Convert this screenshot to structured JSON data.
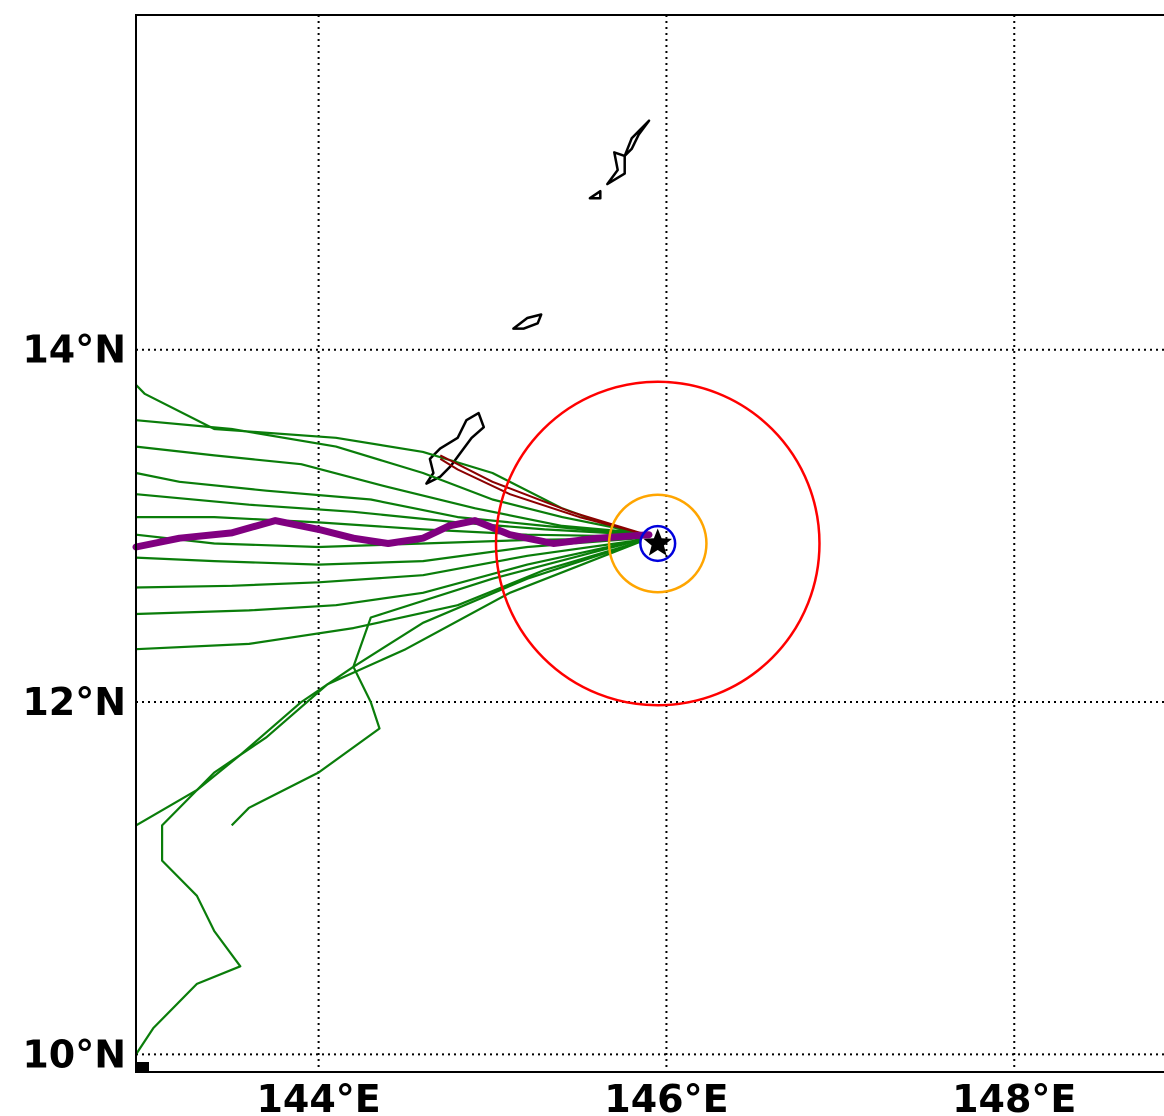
{
  "chart_data": {
    "type": "map",
    "projection": "cylindrical",
    "title": "",
    "xlabel": "",
    "ylabel": "",
    "xlim": [
      142.95,
      148.93
    ],
    "ylim": [
      9.9,
      15.9
    ],
    "grid": true,
    "x_ticks": [
      {
        "value": 144,
        "label": "144°E"
      },
      {
        "value": 146,
        "label": "146°E"
      },
      {
        "value": 148,
        "label": "148°E"
      }
    ],
    "y_ticks": [
      {
        "value": 14,
        "label": "14°N"
      },
      {
        "value": 12,
        "label": "12°N"
      },
      {
        "value": 10,
        "label": "10°N"
      }
    ],
    "storm_center": {
      "lon": 145.95,
      "lat": 12.9,
      "marker": "star"
    },
    "circles": [
      {
        "name": "blue",
        "center": [
          145.95,
          12.9
        ],
        "radius_deg": 0.1,
        "color": "#0000dd"
      },
      {
        "name": "orange",
        "center": [
          145.95,
          12.9
        ],
        "radius_deg": 0.28,
        "color": "#ffa500"
      },
      {
        "name": "red",
        "center": [
          145.95,
          12.9
        ],
        "radius_deg": 0.93,
        "color": "#ff0000"
      }
    ],
    "series": [
      {
        "role": "mean-track",
        "color": "#800080",
        "points": [
          [
            142.95,
            12.88
          ],
          [
            143.2,
            12.93
          ],
          [
            143.5,
            12.96
          ],
          [
            143.75,
            13.03
          ],
          [
            144.0,
            12.98
          ],
          [
            144.2,
            12.93
          ],
          [
            144.4,
            12.9
          ],
          [
            144.6,
            12.93
          ],
          [
            144.75,
            13.0
          ],
          [
            144.9,
            13.03
          ],
          [
            145.1,
            12.95
          ],
          [
            145.35,
            12.9
          ],
          [
            145.6,
            12.93
          ],
          [
            145.9,
            12.95
          ]
        ]
      }
    ],
    "ensemble_tracks": [
      {
        "color": "#0a7d0a",
        "points": [
          [
            145.85,
            12.96
          ],
          [
            145.4,
            13.05
          ],
          [
            145.0,
            13.15
          ],
          [
            144.6,
            13.3
          ],
          [
            144.1,
            13.45
          ],
          [
            143.5,
            13.55
          ],
          [
            142.95,
            13.6
          ]
        ]
      },
      {
        "color": "#0a7d0a",
        "points": [
          [
            145.85,
            12.96
          ],
          [
            145.4,
            13.0
          ],
          [
            144.9,
            13.1
          ],
          [
            144.4,
            13.22
          ],
          [
            143.9,
            13.35
          ],
          [
            143.4,
            13.4
          ],
          [
            142.95,
            13.45
          ]
        ]
      },
      {
        "color": "#0a7d0a",
        "points": [
          [
            145.85,
            12.95
          ],
          [
            145.3,
            13.0
          ],
          [
            144.8,
            13.05
          ],
          [
            144.3,
            13.15
          ],
          [
            143.7,
            13.2
          ],
          [
            143.2,
            13.25
          ],
          [
            142.95,
            13.3
          ]
        ]
      },
      {
        "color": "#0a7d0a",
        "points": [
          [
            145.85,
            12.95
          ],
          [
            145.3,
            12.98
          ],
          [
            144.8,
            13.02
          ],
          [
            144.2,
            13.08
          ],
          [
            143.6,
            13.12
          ],
          [
            142.95,
            13.18
          ]
        ]
      },
      {
        "color": "#0a7d0a",
        "points": [
          [
            145.85,
            12.94
          ],
          [
            145.2,
            12.95
          ],
          [
            144.6,
            12.98
          ],
          [
            144.0,
            13.02
          ],
          [
            143.4,
            13.05
          ],
          [
            142.95,
            13.05
          ]
        ]
      },
      {
        "color": "#0a7d0a",
        "points": [
          [
            145.85,
            12.93
          ],
          [
            145.2,
            12.92
          ],
          [
            144.6,
            12.9
          ],
          [
            144.0,
            12.88
          ],
          [
            143.4,
            12.9
          ],
          [
            142.95,
            12.95
          ]
        ]
      },
      {
        "color": "#0a7d0a",
        "points": [
          [
            145.85,
            12.93
          ],
          [
            145.2,
            12.88
          ],
          [
            144.6,
            12.8
          ],
          [
            144.0,
            12.78
          ],
          [
            143.4,
            12.8
          ],
          [
            142.95,
            12.82
          ]
        ]
      },
      {
        "color": "#0a7d0a",
        "points": [
          [
            145.85,
            12.92
          ],
          [
            145.2,
            12.83
          ],
          [
            144.6,
            12.72
          ],
          [
            144.0,
            12.68
          ],
          [
            143.5,
            12.66
          ],
          [
            142.95,
            12.65
          ]
        ]
      },
      {
        "color": "#0a7d0a",
        "points": [
          [
            145.85,
            12.92
          ],
          [
            145.2,
            12.78
          ],
          [
            144.6,
            12.62
          ],
          [
            144.1,
            12.55
          ],
          [
            143.6,
            12.52
          ],
          [
            142.95,
            12.5
          ]
        ]
      },
      {
        "color": "#0a7d0a",
        "points": [
          [
            145.85,
            12.91
          ],
          [
            145.3,
            12.75
          ],
          [
            144.8,
            12.55
          ],
          [
            144.2,
            12.42
          ],
          [
            143.6,
            12.33
          ],
          [
            142.95,
            12.3
          ]
        ]
      },
      {
        "color": "#0a7d0a",
        "points": [
          [
            145.85,
            12.91
          ],
          [
            145.2,
            12.7
          ],
          [
            144.6,
            12.45
          ],
          [
            144.2,
            12.2
          ],
          [
            143.9,
            12.0
          ],
          [
            143.55,
            11.7
          ],
          [
            143.3,
            11.5
          ],
          [
            142.95,
            11.3
          ]
        ]
      },
      {
        "color": "#0a7d0a",
        "points": [
          [
            145.85,
            12.91
          ],
          [
            145.1,
            12.62
          ],
          [
            144.5,
            12.3
          ],
          [
            144.05,
            12.1
          ],
          [
            143.7,
            11.8
          ],
          [
            143.4,
            11.6
          ],
          [
            143.1,
            11.3
          ],
          [
            143.1,
            11.1
          ],
          [
            143.3,
            10.9
          ],
          [
            143.4,
            10.7
          ],
          [
            143.55,
            10.5
          ],
          [
            143.3,
            10.4
          ],
          [
            143.05,
            10.15
          ],
          [
            142.95,
            10.0
          ]
        ]
      },
      {
        "color": "#0a7d0a",
        "points": [
          [
            145.85,
            12.92
          ],
          [
            145.0,
            12.7
          ],
          [
            144.3,
            12.48
          ],
          [
            144.2,
            12.2
          ],
          [
            144.3,
            12.0
          ],
          [
            144.35,
            11.85
          ],
          [
            144.0,
            11.6
          ],
          [
            143.6,
            11.4
          ],
          [
            143.5,
            11.3
          ]
        ]
      },
      {
        "color": "#0a7d0a",
        "points": [
          [
            145.85,
            12.94
          ],
          [
            145.4,
            13.1
          ],
          [
            145.0,
            13.3
          ],
          [
            144.6,
            13.42
          ],
          [
            144.1,
            13.5
          ],
          [
            143.4,
            13.55
          ],
          [
            143.0,
            13.75
          ],
          [
            142.95,
            13.8
          ]
        ]
      }
    ],
    "alternate_tracks": [
      {
        "color": "#8b0000",
        "points": [
          [
            145.85,
            12.96
          ],
          [
            145.5,
            13.05
          ],
          [
            145.1,
            13.18
          ],
          [
            144.8,
            13.32
          ],
          [
            144.7,
            13.38
          ]
        ]
      },
      {
        "color": "#8b0000",
        "points": [
          [
            145.85,
            12.96
          ],
          [
            145.45,
            13.08
          ],
          [
            145.0,
            13.25
          ],
          [
            144.7,
            13.4
          ]
        ]
      }
    ],
    "coastlines": [
      {
        "name": "island-a",
        "points": [
          [
            144.62,
            13.24
          ],
          [
            144.66,
            13.3
          ],
          [
            144.64,
            13.38
          ],
          [
            144.7,
            13.44
          ],
          [
            144.8,
            13.5
          ],
          [
            144.85,
            13.6
          ],
          [
            144.92,
            13.64
          ],
          [
            144.95,
            13.56
          ],
          [
            144.88,
            13.5
          ],
          [
            144.82,
            13.42
          ],
          [
            144.76,
            13.34
          ],
          [
            144.7,
            13.28
          ],
          [
            144.62,
            13.24
          ]
        ]
      },
      {
        "name": "island-b",
        "points": [
          [
            145.12,
            14.12
          ],
          [
            145.2,
            14.18
          ],
          [
            145.28,
            14.2
          ],
          [
            145.26,
            14.15
          ],
          [
            145.18,
            14.12
          ],
          [
            145.12,
            14.12
          ]
        ]
      },
      {
        "name": "island-c",
        "points": [
          [
            145.56,
            14.86
          ],
          [
            145.62,
            14.9
          ],
          [
            145.62,
            14.86
          ],
          [
            145.56,
            14.86
          ]
        ]
      },
      {
        "name": "island-d",
        "points": [
          [
            145.66,
            14.94
          ],
          [
            145.72,
            15.02
          ],
          [
            145.7,
            15.12
          ],
          [
            145.76,
            15.1
          ],
          [
            145.76,
            15.0
          ],
          [
            145.66,
            14.94
          ]
        ]
      },
      {
        "name": "island-e",
        "points": [
          [
            145.76,
            15.1
          ],
          [
            145.8,
            15.2
          ],
          [
            145.86,
            15.26
          ],
          [
            145.9,
            15.3
          ],
          [
            145.84,
            15.22
          ],
          [
            145.8,
            15.14
          ],
          [
            145.76,
            15.1
          ]
        ]
      }
    ]
  }
}
